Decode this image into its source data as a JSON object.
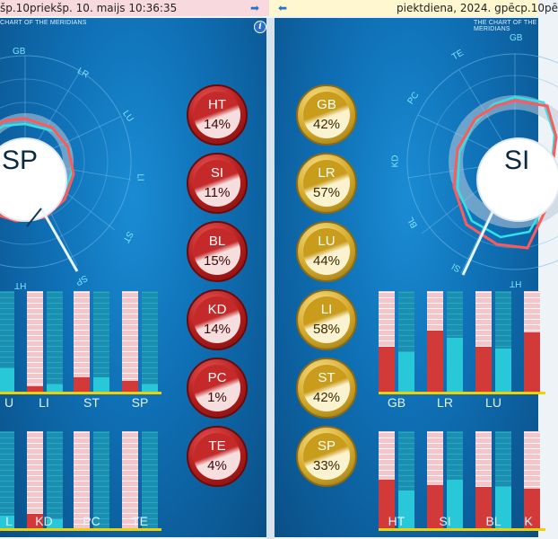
{
  "topbar": {
    "left_text": "šp.10priekšp. 10. maijs 10:36:35",
    "right_text": "piektdiena, 2024. gpēcp.10pē",
    "right_arrow_icon": "arrow-right",
    "left_arrow_icon": "arrow-left"
  },
  "left_panel": {
    "title": "CHART OF THE MERIDIANS",
    "center_label": "SP",
    "radial_labels": [
      "GB",
      "LR",
      "LU",
      "LI",
      "ST",
      "SP",
      "HT"
    ],
    "bars_top_labels": [
      "U",
      "LI",
      "ST",
      "SP"
    ],
    "bars_bottom_labels": [
      "L",
      "KD",
      "PC",
      "TE"
    ]
  },
  "right_panel": {
    "title": "THE CHART OF THE MERIDIANS",
    "center_label": "SI",
    "radial_labels": [
      "GB",
      "TE",
      "PC",
      "KD",
      "BL",
      "SI",
      "HT"
    ],
    "bars_top_labels": [
      "GB",
      "LR",
      "LU"
    ],
    "bars_bottom_labels": [
      "HT",
      "SI",
      "BL",
      "K"
    ]
  },
  "badges_red": [
    {
      "label": "HT",
      "value": "14%"
    },
    {
      "label": "SI",
      "value": "11%"
    },
    {
      "label": "BL",
      "value": "15%"
    },
    {
      "label": "KD",
      "value": "14%"
    },
    {
      "label": "PC",
      "value": "1%"
    },
    {
      "label": "TE",
      "value": "4%"
    }
  ],
  "badges_gold": [
    {
      "label": "GB",
      "value": "42%"
    },
    {
      "label": "LR",
      "value": "57%"
    },
    {
      "label": "LU",
      "value": "44%"
    },
    {
      "label": "LI",
      "value": "58%"
    },
    {
      "label": "ST",
      "value": "42%"
    },
    {
      "label": "SP",
      "value": "33%"
    }
  ],
  "colors": {
    "panel_blue": "#0f6fb4",
    "red_badge": "#b11c1c",
    "gold_badge": "#d5aa2a",
    "radar_red": "#ff5a5a",
    "radar_cyan": "#33e0e6",
    "bar_pink": "#f3c6cc",
    "bar_red": "#d23a3a",
    "bar_cyan": "#28c8d8",
    "bar_teal": "#1a8fb0",
    "baseline_yellow": "#f0d000"
  }
}
